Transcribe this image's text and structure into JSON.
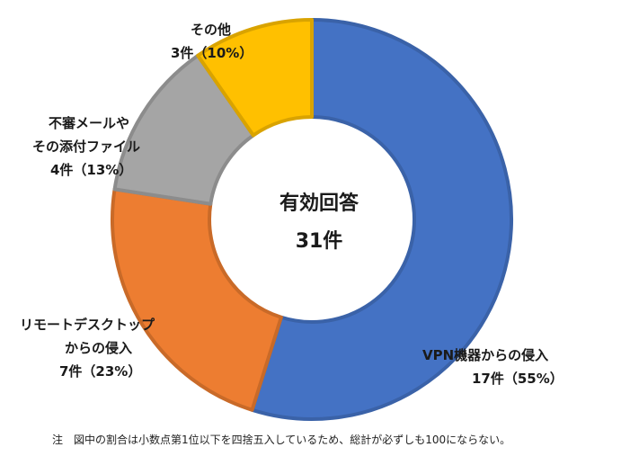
{
  "chart_data": {
    "type": "pie",
    "style": "donut",
    "center_title": "有効回答",
    "center_value": "31件",
    "slices": [
      {
        "name": "VPN機器からの侵入",
        "count": 17,
        "value_label": "17件（55%）",
        "percent": 55,
        "color": "#4472C4",
        "border": "#3A62A8"
      },
      {
        "name": "リモートデスクトップからの侵入",
        "name_line1": "リモートデスクトップ",
        "name_line2": "からの侵入",
        "count": 7,
        "value_label": "7件（23%）",
        "percent": 23,
        "color": "#ED7D31",
        "border": "#C96A28"
      },
      {
        "name": "不審メールやその添付ファイル",
        "name_line1": "不審メールや",
        "name_line2": "その添付ファイル",
        "count": 4,
        "value_label": "4件（13%）",
        "percent": 13,
        "color": "#A5A5A5",
        "border": "#8C8C8C"
      },
      {
        "name": "その他",
        "count": 3,
        "value_label": "3件（10%）",
        "percent": 10,
        "color": "#FFC000",
        "border": "#D9A300"
      }
    ],
    "legend": "none"
  },
  "note": "注　図中の割合は小数点第1位以下を四捨五入しているため、総計が必ずしも100にならない。"
}
